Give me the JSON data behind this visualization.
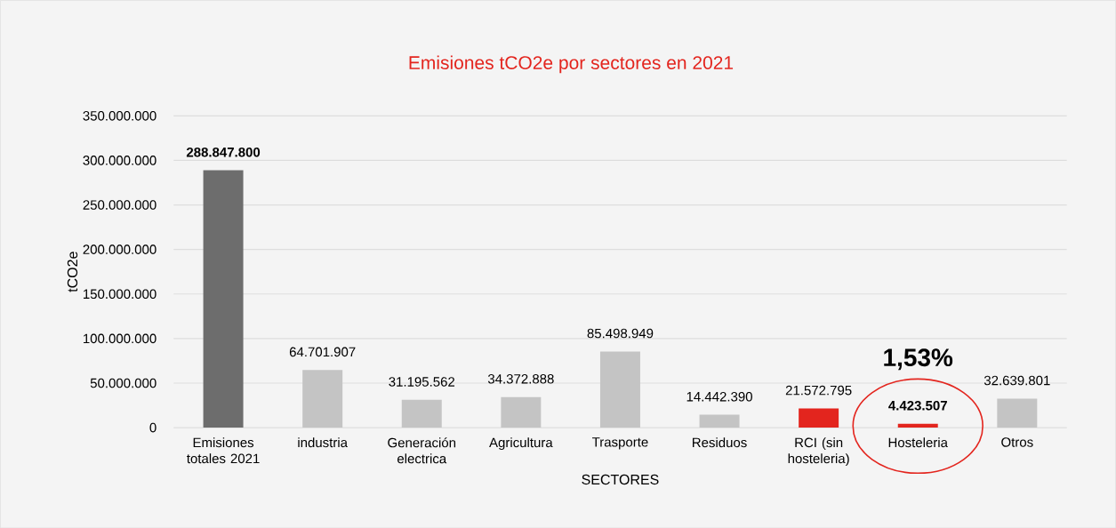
{
  "chart_data": {
    "type": "bar",
    "title": "Emisiones tCO2e por sectores en 2021",
    "xlabel": "SECTORES",
    "ylabel": "tCO2e",
    "categories": [
      "Emisiones totales 2021",
      "industria",
      "Generación electrica",
      "Agricultura",
      "Trasporte",
      "Residuos",
      "RCI (sin hosteleria)",
      "Hosteleria",
      "Otros"
    ],
    "values": [
      288847800,
      64701907,
      31195562,
      34372888,
      85498949,
      14442390,
      21572795,
      4423507,
      32639801
    ],
    "colors": [
      "#6d6d6d",
      "#c4c4c4",
      "#c4c4c4",
      "#c4c4c4",
      "#c4c4c4",
      "#c4c4c4",
      "#e3251e",
      "#e3251e",
      "#c4c4c4"
    ],
    "value_labels": [
      "**288.847.800**",
      "64.701.907",
      "31.195.562",
      "34.372.888",
      "85.498.949",
      "14.442.390",
      "21.572.795",
      "**4.423.507**",
      "32.639.801"
    ],
    "ylim": [
      0,
      350000000
    ],
    "yticks": [
      0,
      {
        "value": 50000000,
        "label": "50.000.000"
      },
      {
        "value": 100000000,
        "label": "100.000.000"
      },
      {
        "value": 150000000,
        "label": "150.000.000"
      },
      {
        "value": 200000000,
        "label": "200.000.000"
      },
      {
        "value": 250000000,
        "label": "250.000.000"
      },
      {
        "value": 300000000,
        "label": "300.000.000"
      },
      {
        "value": 350000000,
        "label": "350.000.000"
      }
    ],
    "grid": "y",
    "annotations": [
      "1,53%"
    ]
  }
}
